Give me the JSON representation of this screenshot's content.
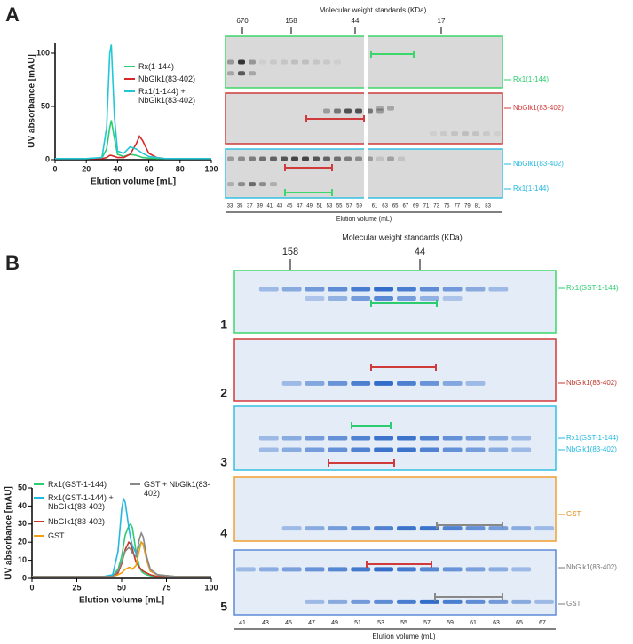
{
  "panel_labels": [
    "A",
    "B"
  ],
  "chart_data": [
    {
      "type": "line",
      "xlabel": "Elution volume [mL]",
      "ylabel": "UV absorbance [mAU]",
      "x": [
        0,
        20,
        30,
        33,
        35,
        36,
        38,
        40,
        44,
        48,
        52,
        54,
        56,
        60,
        65,
        70,
        80,
        100
      ],
      "xlim": [
        0,
        100
      ],
      "xticks": [
        0,
        20,
        40,
        60,
        80,
        100
      ],
      "ylim": [
        0,
        110
      ],
      "yticks": [
        0,
        50,
        100
      ],
      "series": [
        {
          "name": "Rx(1-144)",
          "color": "#2ecc71",
          "values": [
            1,
            1,
            1.5,
            10,
            30,
            37,
            20,
            5,
            3,
            5,
            4,
            3,
            2,
            1.5,
            1,
            1,
            1,
            1
          ]
        },
        {
          "name": "NbGlk1(83-402)",
          "color": "#d62728",
          "values": [
            1,
            1,
            1,
            2,
            4,
            4,
            3,
            2,
            2,
            5,
            15,
            22,
            18,
            6,
            2,
            1,
            1,
            1
          ]
        },
        {
          "name": "Rx1(1-144) + NbGlk1(83-402)",
          "color": "#22c7d6",
          "values": [
            1,
            1,
            2,
            30,
            100,
            108,
            40,
            8,
            6,
            12,
            10,
            8,
            6,
            3,
            2,
            1,
            1,
            1
          ]
        }
      ]
    },
    {
      "type": "line",
      "xlabel": "Elution volume [mL]",
      "ylabel": "UV absorbance [mAU]",
      "x": [
        0,
        40,
        45,
        48,
        50,
        51,
        52,
        54,
        55,
        56,
        58,
        60,
        61,
        62,
        64,
        66,
        70,
        80,
        100
      ],
      "xlim": [
        0,
        100
      ],
      "xticks": [
        0,
        25,
        50,
        75,
        100
      ],
      "ylim": [
        0,
        50
      ],
      "yticks": [
        0,
        10,
        20,
        30,
        40,
        50
      ],
      "series": [
        {
          "name": "Rx1(GST-1-144)",
          "color": "#2ecc71",
          "values": [
            1,
            1,
            1.5,
            5,
            12,
            18,
            24,
            29,
            30,
            28,
            15,
            6,
            4,
            3,
            2,
            1.5,
            1,
            1,
            1
          ]
        },
        {
          "name": "Rx1(GST-1-144) + NbGlk1(83-402)",
          "color": "#22b8e0",
          "values": [
            1,
            1,
            2,
            15,
            38,
            44,
            42,
            28,
            22,
            18,
            14,
            18,
            20,
            19,
            10,
            4,
            2,
            1,
            1
          ]
        },
        {
          "name": "NbGlk1(83-402)",
          "color": "#c0392b",
          "values": [
            1,
            1,
            1,
            3,
            8,
            12,
            16,
            20,
            19,
            16,
            9,
            6,
            5,
            4,
            3,
            2,
            1,
            1,
            1
          ]
        },
        {
          "name": "GST",
          "color": "#f39c12",
          "values": [
            1,
            1,
            1,
            2,
            3,
            4,
            5,
            6,
            6,
            5,
            7,
            16,
            20,
            19,
            10,
            4,
            2,
            1,
            1
          ]
        },
        {
          "name": "GST + NbGlk1(83-402)",
          "color": "#888888",
          "values": [
            1,
            1,
            1,
            4,
            9,
            12,
            15,
            17,
            16,
            14,
            12,
            22,
            25,
            23,
            12,
            5,
            2,
            1,
            1
          ]
        }
      ]
    }
  ],
  "gel_a": {
    "title": "Molecular weight standards (KDa)",
    "markers": [
      "670",
      "158",
      "44",
      "17"
    ],
    "labels": [
      "Rx1(1-144)",
      "NbGlk1(83-402)",
      "NbGlk1(83-402)",
      "Rx1(1-144)"
    ],
    "lanes": [
      "33",
      "35",
      "37",
      "39",
      "41",
      "43",
      "45",
      "47",
      "49",
      "51",
      "53",
      "55",
      "57",
      "59",
      "61",
      "63",
      "65",
      "67",
      "69",
      "71",
      "73",
      "75",
      "77",
      "79",
      "81",
      "83"
    ],
    "xlabel": "Elution volume (mL)"
  },
  "gel_b": {
    "title": "Molecular weight standards (KDa)",
    "markers": [
      "158",
      "44"
    ],
    "numbers": [
      "1",
      "2",
      "3",
      "4",
      "5"
    ],
    "labels": [
      "Rx1(GST-1-144)",
      "NbGlk1(83-402)",
      "Rx1(GST-1-144)",
      "NbGlk1(83-402)",
      "GST",
      "NbGlk1(83-402)",
      "GST"
    ],
    "lanes": [
      "41",
      "43",
      "45",
      "47",
      "49",
      "51",
      "53",
      "55",
      "57",
      "59",
      "61",
      "63",
      "65",
      "67"
    ],
    "xlabel": "Elution volume (mL)"
  }
}
